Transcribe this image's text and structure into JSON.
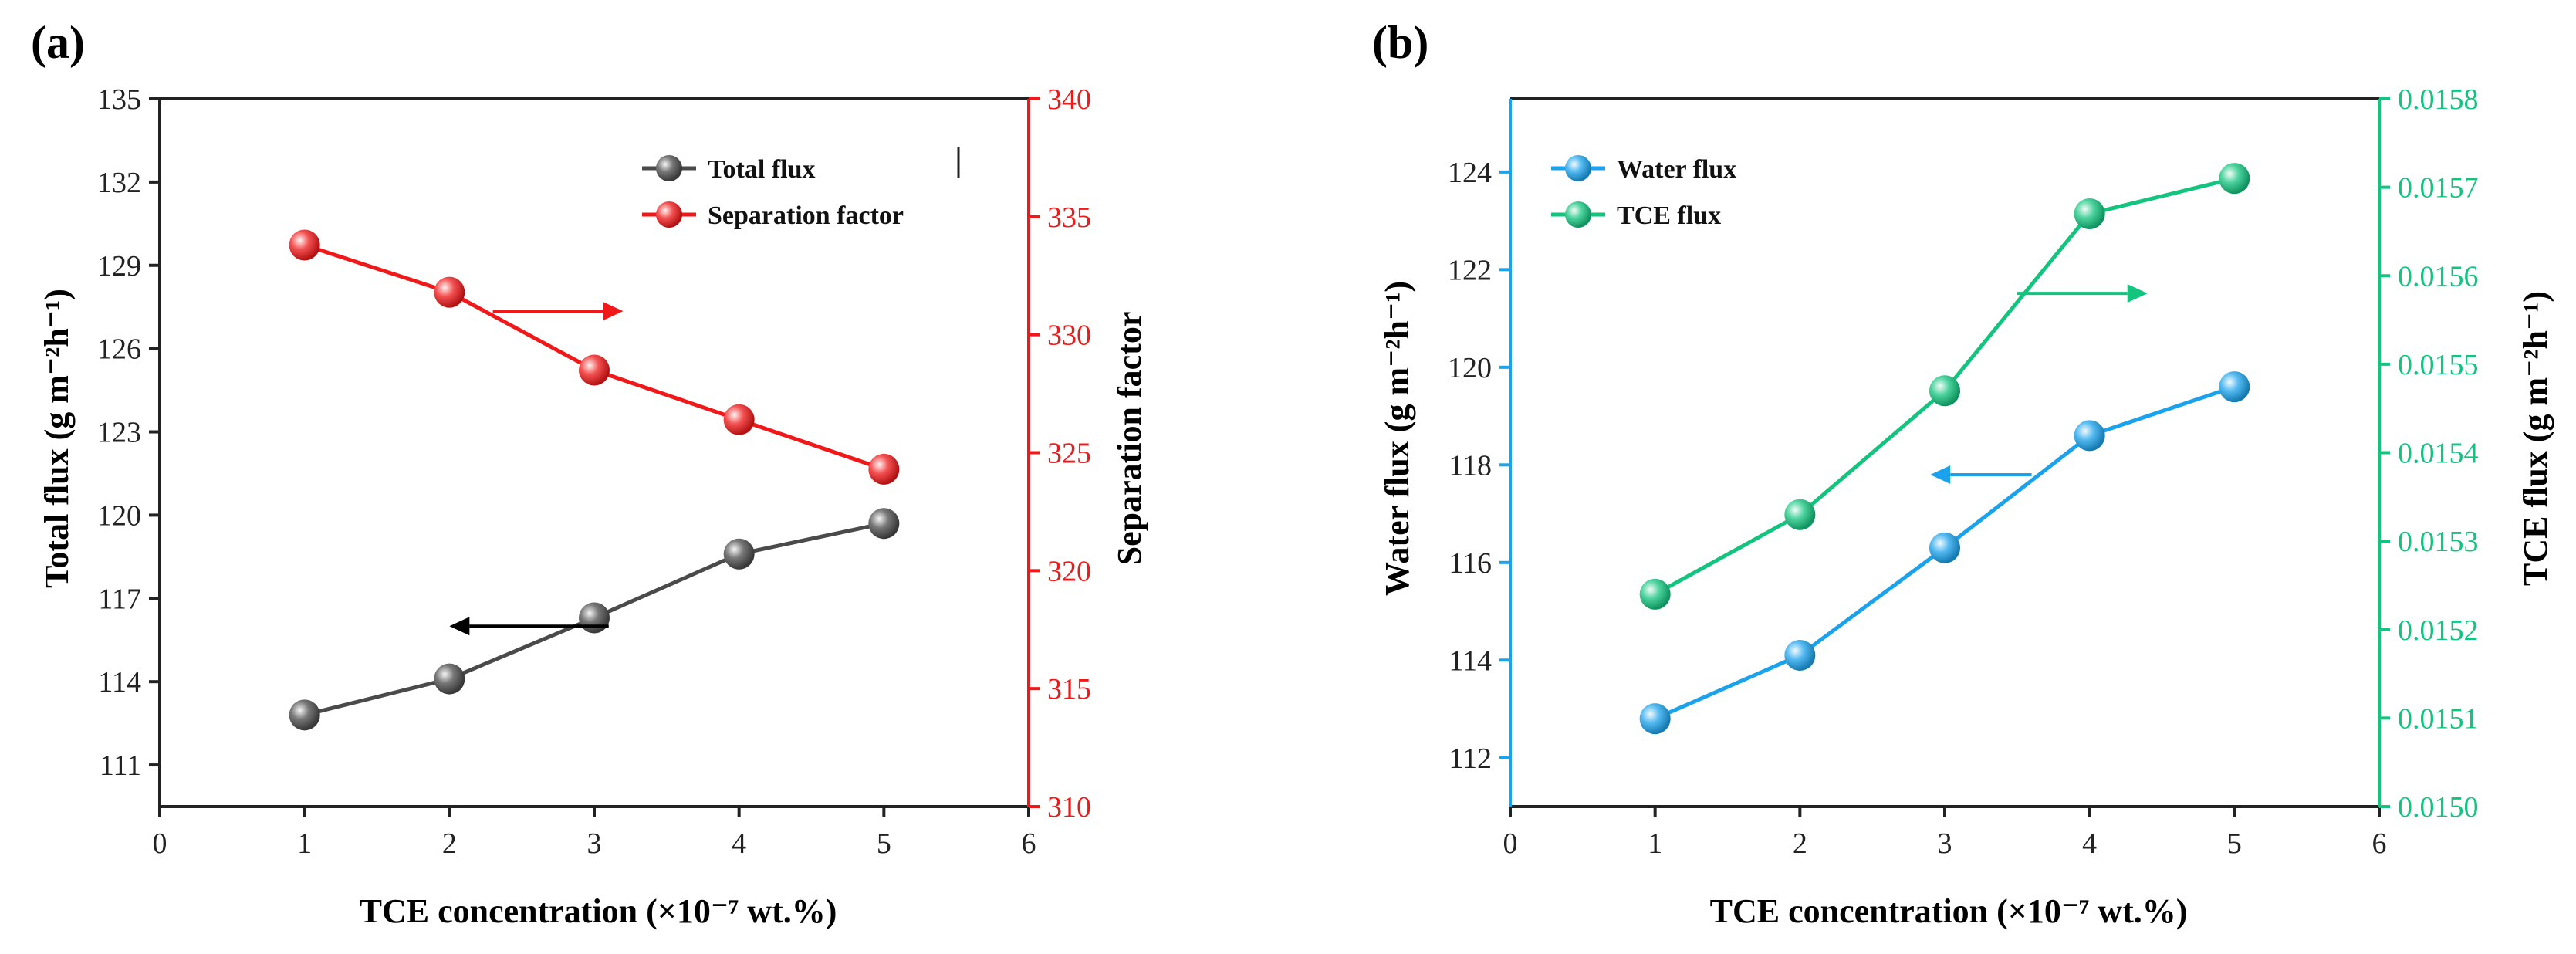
{
  "chart_data": [
    {
      "type": "line",
      "panel_label": "(a)",
      "xlabel": "TCE concentration (×10⁻⁷ wt.%)",
      "xlim": [
        0,
        6
      ],
      "xticks": [
        0,
        1,
        2,
        3,
        4,
        5,
        6
      ],
      "ylabel_left": "Total flux (g m⁻²h⁻¹)",
      "ylim_left": [
        109.5,
        135
      ],
      "yticks_left": [
        111,
        114,
        117,
        120,
        123,
        126,
        129,
        132,
        135
      ],
      "ylabel_right": "Separation factor",
      "ylim_right": [
        310,
        340
      ],
      "yticks_right": [
        310,
        315,
        320,
        325,
        330,
        335,
        340
      ],
      "legend_position": "top-right",
      "series": [
        {
          "name": "Total flux",
          "axis": "left",
          "color": "#4a4a4a",
          "x": [
            1,
            2,
            3,
            4,
            5
          ],
          "values": [
            112.8,
            114.1,
            116.3,
            118.6,
            119.7
          ]
        },
        {
          "name": "Separation factor",
          "axis": "right",
          "color": "#f01818",
          "x": [
            1,
            2,
            3,
            4,
            5
          ],
          "values": [
            333.8,
            331.8,
            328.5,
            326.4,
            324.3
          ]
        }
      ],
      "annotations": [
        {
          "type": "arrow",
          "direction": "left",
          "color": "#000000",
          "x_from": 3.1,
          "x_to": 2.0,
          "axis": "left",
          "y": 116
        },
        {
          "type": "arrow",
          "direction": "right",
          "color": "#f01818",
          "x_from": 2.3,
          "x_to": 3.2,
          "axis": "right",
          "y": 331
        }
      ]
    },
    {
      "type": "line",
      "panel_label": "(b)",
      "xlabel": "TCE concentration (×10⁻⁷ wt.%)",
      "xlim": [
        0,
        6
      ],
      "xticks": [
        0,
        1,
        2,
        3,
        4,
        5,
        6
      ],
      "ylabel_left": "Water flux (g m⁻²h⁻¹)",
      "ylim_left": [
        111,
        125.5
      ],
      "yticks_left": [
        112,
        114,
        116,
        118,
        120,
        122,
        124
      ],
      "ylabel_right": "TCE flux (g m⁻²h⁻¹)",
      "ylim_right": [
        0.015,
        0.0158
      ],
      "yticks_right": [
        0.015,
        0.0151,
        0.0152,
        0.0153,
        0.0154,
        0.0155,
        0.0156,
        0.0157,
        0.0158
      ],
      "legend_position": "top-left",
      "series": [
        {
          "name": "Water flux",
          "axis": "left",
          "color": "#1aa2ec",
          "x": [
            1,
            2,
            3,
            4,
            5
          ],
          "values": [
            112.8,
            114.1,
            116.3,
            118.6,
            119.6
          ]
        },
        {
          "name": "TCE flux",
          "axis": "right",
          "color": "#12c47e",
          "x": [
            1,
            2,
            3,
            4,
            5
          ],
          "values": [
            0.01524,
            0.01533,
            0.01547,
            0.01567,
            0.01571
          ]
        }
      ],
      "annotations": [
        {
          "type": "arrow",
          "direction": "left",
          "color": "#1aa2ec",
          "x_from": 3.6,
          "x_to": 2.9,
          "axis": "left",
          "y": 117.8
        },
        {
          "type": "arrow",
          "direction": "right",
          "color": "#12c47e",
          "x_from": 3.5,
          "x_to": 4.4,
          "axis": "right",
          "y": 0.01558
        }
      ]
    }
  ]
}
